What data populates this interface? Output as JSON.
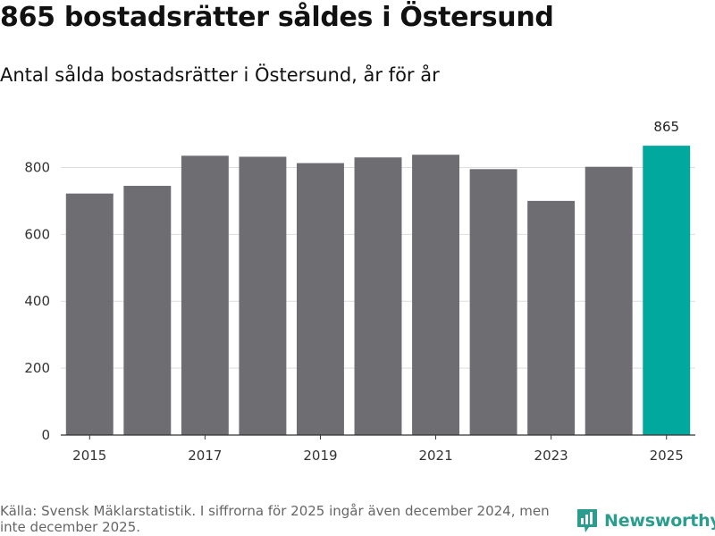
{
  "header": {
    "title": "865 bostadsrätter såldes i Östersund",
    "subtitle": "Antal sålda bostadsrätter i Östersund, år för år"
  },
  "chart_data": {
    "type": "bar",
    "categories": [
      "2015",
      "2016",
      "2017",
      "2018",
      "2019",
      "2020",
      "2021",
      "2022",
      "2023",
      "2024",
      "2025"
    ],
    "values": [
      722,
      745,
      835,
      832,
      813,
      830,
      838,
      795,
      700,
      802,
      865
    ],
    "x_tick_labels": [
      "2015",
      "2017",
      "2019",
      "2021",
      "2023",
      "2025"
    ],
    "y_ticks": [
      0,
      200,
      400,
      600,
      800
    ],
    "ylim": [
      0,
      900
    ],
    "highlight_index": 10,
    "data_labels": [
      {
        "index": 10,
        "text": "865"
      }
    ],
    "bar_color": "#6e6d72",
    "highlight_color": "#00a89d",
    "grid": true,
    "title": "865 bostadsrätter såldes i Östersund",
    "xlabel": "",
    "ylabel": ""
  },
  "footer": {
    "source": "Källa: Svensk Mäklarstatistik. I siffrorna för 2025 ingår även december 2024, men inte december 2025."
  },
  "brand": {
    "name": "Newsworthy",
    "icon": "newsworthy-logo-icon",
    "color": "#2a9d8f"
  }
}
